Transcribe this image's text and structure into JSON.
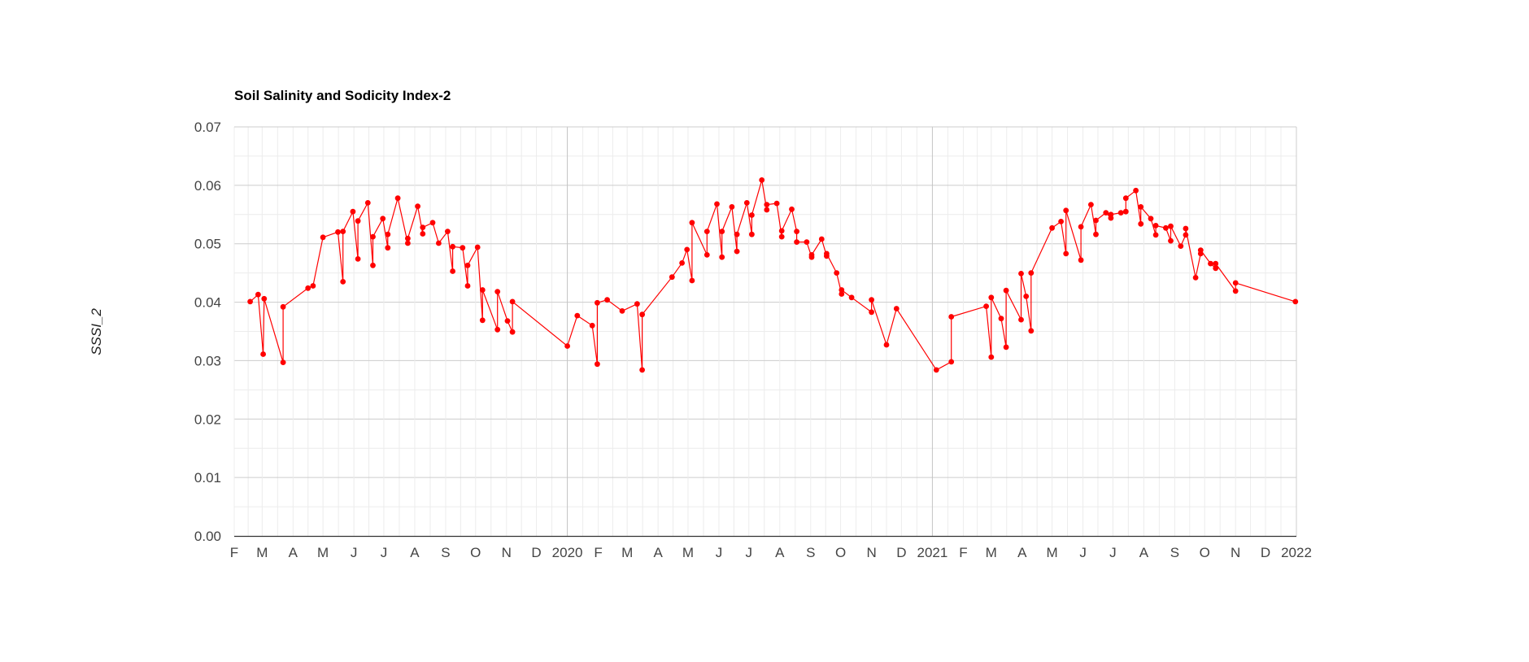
{
  "chart_data": {
    "type": "line",
    "title": "Soil Salinity and Sodicity Index-2",
    "xlabel": "",
    "ylabel": "SSSI_2",
    "ylim": [
      0,
      0.07
    ],
    "yticks": [
      "0.00",
      "0.01",
      "0.02",
      "0.03",
      "0.04",
      "0.05",
      "0.06",
      "0.07"
    ],
    "xlim": [
      "2019-02-01",
      "2022-01-01"
    ],
    "xticks": [
      {
        "date": "2019-02-01",
        "label": "F"
      },
      {
        "date": "2019-03-01",
        "label": "M"
      },
      {
        "date": "2019-04-01",
        "label": "A"
      },
      {
        "date": "2019-05-01",
        "label": "M"
      },
      {
        "date": "2019-06-01",
        "label": "J"
      },
      {
        "date": "2019-07-01",
        "label": "J"
      },
      {
        "date": "2019-08-01",
        "label": "A"
      },
      {
        "date": "2019-09-01",
        "label": "S"
      },
      {
        "date": "2019-10-01",
        "label": "O"
      },
      {
        "date": "2019-11-01",
        "label": "N"
      },
      {
        "date": "2019-12-01",
        "label": "D"
      },
      {
        "date": "2020-01-01",
        "label": "2020",
        "year": true
      },
      {
        "date": "2020-02-01",
        "label": "F"
      },
      {
        "date": "2020-03-01",
        "label": "M"
      },
      {
        "date": "2020-04-01",
        "label": "A"
      },
      {
        "date": "2020-05-01",
        "label": "M"
      },
      {
        "date": "2020-06-01",
        "label": "J"
      },
      {
        "date": "2020-07-01",
        "label": "J"
      },
      {
        "date": "2020-08-01",
        "label": "A"
      },
      {
        "date": "2020-09-01",
        "label": "S"
      },
      {
        "date": "2020-10-01",
        "label": "O"
      },
      {
        "date": "2020-11-01",
        "label": "N"
      },
      {
        "date": "2020-12-01",
        "label": "D"
      },
      {
        "date": "2021-01-01",
        "label": "2021",
        "year": true
      },
      {
        "date": "2021-02-01",
        "label": "F"
      },
      {
        "date": "2021-03-01",
        "label": "M"
      },
      {
        "date": "2021-04-01",
        "label": "A"
      },
      {
        "date": "2021-05-01",
        "label": "M"
      },
      {
        "date": "2021-06-01",
        "label": "J"
      },
      {
        "date": "2021-07-01",
        "label": "J"
      },
      {
        "date": "2021-08-01",
        "label": "A"
      },
      {
        "date": "2021-09-01",
        "label": "S"
      },
      {
        "date": "2021-10-01",
        "label": "O"
      },
      {
        "date": "2021-11-01",
        "label": "N"
      },
      {
        "date": "2021-12-01",
        "label": "D"
      },
      {
        "date": "2022-01-01",
        "label": "2022",
        "year": true
      }
    ],
    "grid": true,
    "series": [
      {
        "color": "#ff0000",
        "points": [
          [
            "2019-02-17",
            0.0401
          ],
          [
            "2019-02-25",
            0.0413
          ],
          [
            "2019-03-02",
            0.0311
          ],
          [
            "2019-03-03",
            0.0406
          ],
          [
            "2019-03-22",
            0.0297
          ],
          [
            "2019-03-22",
            0.0392
          ],
          [
            "2019-04-16",
            0.0424
          ],
          [
            "2019-04-21",
            0.0428
          ],
          [
            "2019-05-01",
            0.0511
          ],
          [
            "2019-05-16",
            0.052
          ],
          [
            "2019-05-21",
            0.0435
          ],
          [
            "2019-05-21",
            0.0521
          ],
          [
            "2019-05-31",
            0.0555
          ],
          [
            "2019-06-05",
            0.0474
          ],
          [
            "2019-06-05",
            0.0539
          ],
          [
            "2019-06-15",
            0.057
          ],
          [
            "2019-06-20",
            0.0463
          ],
          [
            "2019-06-20",
            0.0512
          ],
          [
            "2019-06-30",
            0.0543
          ],
          [
            "2019-07-05",
            0.0493
          ],
          [
            "2019-07-05",
            0.0516
          ],
          [
            "2019-07-15",
            0.0578
          ],
          [
            "2019-07-25",
            0.0501
          ],
          [
            "2019-07-25",
            0.0509
          ],
          [
            "2019-08-04",
            0.0564
          ],
          [
            "2019-08-09",
            0.0517
          ],
          [
            "2019-08-09",
            0.0528
          ],
          [
            "2019-08-19",
            0.0536
          ],
          [
            "2019-08-25",
            0.0501
          ],
          [
            "2019-09-03",
            0.0521
          ],
          [
            "2019-09-08",
            0.0453
          ],
          [
            "2019-09-08",
            0.0495
          ],
          [
            "2019-09-18",
            0.0493
          ],
          [
            "2019-09-23",
            0.0428
          ],
          [
            "2019-09-23",
            0.0463
          ],
          [
            "2019-10-03",
            0.0494
          ],
          [
            "2019-10-08",
            0.0369
          ],
          [
            "2019-10-08",
            0.0421
          ],
          [
            "2019-10-23",
            0.0353
          ],
          [
            "2019-10-23",
            0.0418
          ],
          [
            "2019-11-02",
            0.0368
          ],
          [
            "2019-11-07",
            0.0349
          ],
          [
            "2019-11-07",
            0.0401
          ],
          [
            "2020-01-01",
            0.0325
          ],
          [
            "2020-01-11",
            0.0377
          ],
          [
            "2020-01-26",
            0.036
          ],
          [
            "2020-01-31",
            0.0294
          ],
          [
            "2020-01-31",
            0.0399
          ],
          [
            "2020-02-10",
            0.0404
          ],
          [
            "2020-02-25",
            0.0385
          ],
          [
            "2020-03-11",
            0.0397
          ],
          [
            "2020-03-16",
            0.0284
          ],
          [
            "2020-03-16",
            0.0379
          ],
          [
            "2020-04-15",
            0.0443
          ],
          [
            "2020-04-25",
            0.0467
          ],
          [
            "2020-04-30",
            0.049
          ],
          [
            "2020-05-05",
            0.0437
          ],
          [
            "2020-05-05",
            0.0536
          ],
          [
            "2020-05-20",
            0.0481
          ],
          [
            "2020-05-20",
            0.0521
          ],
          [
            "2020-05-30",
            0.0568
          ],
          [
            "2020-06-04",
            0.0477
          ],
          [
            "2020-06-04",
            0.0521
          ],
          [
            "2020-06-14",
            0.0563
          ],
          [
            "2020-06-19",
            0.0487
          ],
          [
            "2020-06-19",
            0.0516
          ],
          [
            "2020-06-29",
            0.057
          ],
          [
            "2020-07-04",
            0.0516
          ],
          [
            "2020-07-04",
            0.0549
          ],
          [
            "2020-07-14",
            0.0609
          ],
          [
            "2020-07-19",
            0.0558
          ],
          [
            "2020-07-19",
            0.0567
          ],
          [
            "2020-07-29",
            0.0569
          ],
          [
            "2020-08-03",
            0.0512
          ],
          [
            "2020-08-03",
            0.0522
          ],
          [
            "2020-08-13",
            0.0559
          ],
          [
            "2020-08-18",
            0.0521
          ],
          [
            "2020-08-18",
            0.0503
          ],
          [
            "2020-08-28",
            0.0503
          ],
          [
            "2020-09-02",
            0.0477
          ],
          [
            "2020-09-02",
            0.0481
          ],
          [
            "2020-09-12",
            0.0508
          ],
          [
            "2020-09-17",
            0.0479
          ],
          [
            "2020-09-17",
            0.0483
          ],
          [
            "2020-09-27",
            0.045
          ],
          [
            "2020-10-02",
            0.0414
          ],
          [
            "2020-10-02",
            0.0421
          ],
          [
            "2020-10-12",
            0.0408
          ],
          [
            "2020-11-01",
            0.0383
          ],
          [
            "2020-11-01",
            0.0404
          ],
          [
            "2020-11-16",
            0.0327
          ],
          [
            "2020-11-26",
            0.0389
          ],
          [
            "2021-01-05",
            0.0284
          ],
          [
            "2021-01-20",
            0.0298
          ],
          [
            "2021-01-20",
            0.0375
          ],
          [
            "2021-02-24",
            0.0393
          ],
          [
            "2021-03-01",
            0.0306
          ],
          [
            "2021-03-01",
            0.0408
          ],
          [
            "2021-03-11",
            0.0372
          ],
          [
            "2021-03-16",
            0.0323
          ],
          [
            "2021-03-16",
            0.042
          ],
          [
            "2021-03-31",
            0.037
          ],
          [
            "2021-03-31",
            0.0449
          ],
          [
            "2021-04-05",
            0.041
          ],
          [
            "2021-04-10",
            0.0351
          ],
          [
            "2021-04-10",
            0.045
          ],
          [
            "2021-05-01",
            0.0527
          ],
          [
            "2021-05-10",
            0.0538
          ],
          [
            "2021-05-15",
            0.0483
          ],
          [
            "2021-05-15",
            0.0557
          ],
          [
            "2021-05-30",
            0.0472
          ],
          [
            "2021-05-30",
            0.0529
          ],
          [
            "2021-06-09",
            0.0567
          ],
          [
            "2021-06-14",
            0.0516
          ],
          [
            "2021-06-14",
            0.054
          ],
          [
            "2021-06-24",
            0.0553
          ],
          [
            "2021-06-29",
            0.0544
          ],
          [
            "2021-06-29",
            0.055
          ],
          [
            "2021-07-09",
            0.0553
          ],
          [
            "2021-07-14",
            0.0555
          ],
          [
            "2021-07-14",
            0.0578
          ],
          [
            "2021-07-24",
            0.0591
          ],
          [
            "2021-07-29",
            0.0534
          ],
          [
            "2021-07-29",
            0.0563
          ],
          [
            "2021-08-08",
            0.0543
          ],
          [
            "2021-08-13",
            0.0515
          ],
          [
            "2021-08-13",
            0.0531
          ],
          [
            "2021-08-23",
            0.0527
          ],
          [
            "2021-08-28",
            0.0505
          ],
          [
            "2021-08-28",
            0.053
          ],
          [
            "2021-09-07",
            0.0496
          ],
          [
            "2021-09-12",
            0.0515
          ],
          [
            "2021-09-12",
            0.0526
          ],
          [
            "2021-09-22",
            0.0442
          ],
          [
            "2021-09-27",
            0.0483
          ],
          [
            "2021-09-27",
            0.0489
          ],
          [
            "2021-10-07",
            0.0466
          ],
          [
            "2021-10-12",
            0.0458
          ],
          [
            "2021-10-12",
            0.0466
          ],
          [
            "2021-11-01",
            0.0419
          ],
          [
            "2021-11-01",
            0.0433
          ],
          [
            "2021-12-31",
            0.0401
          ]
        ]
      }
    ]
  }
}
